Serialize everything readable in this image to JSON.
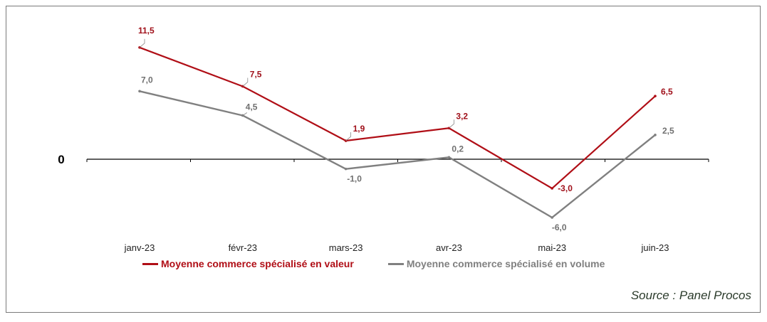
{
  "chart_data": {
    "type": "line",
    "categories": [
      "janv-23",
      "févr-23",
      "mars-23",
      "avr-23",
      "mai-23",
      "juin-23"
    ],
    "series": [
      {
        "name": "Moyenne commerce spécialisé en valeur",
        "color": "#b00e16",
        "values": [
          11.5,
          7.5,
          1.9,
          3.2,
          -3.0,
          6.5
        ],
        "labels": [
          "11,5",
          "7,5",
          "1,9",
          "3,2",
          "-3,0",
          "6,5"
        ]
      },
      {
        "name": "Moyenne commerce spécialisé en volume",
        "color": "#808080",
        "values": [
          7.0,
          4.5,
          -1.0,
          0.2,
          -6.0,
          2.5
        ],
        "labels": [
          "7,0",
          "4,5",
          "-1,0",
          "0,2",
          "-6,0",
          "2,5"
        ]
      }
    ],
    "zero_label": "0",
    "ylim": [
      -8,
      13
    ],
    "grid": false,
    "legend_position": "bottom"
  },
  "source": "Source : Panel Procos"
}
